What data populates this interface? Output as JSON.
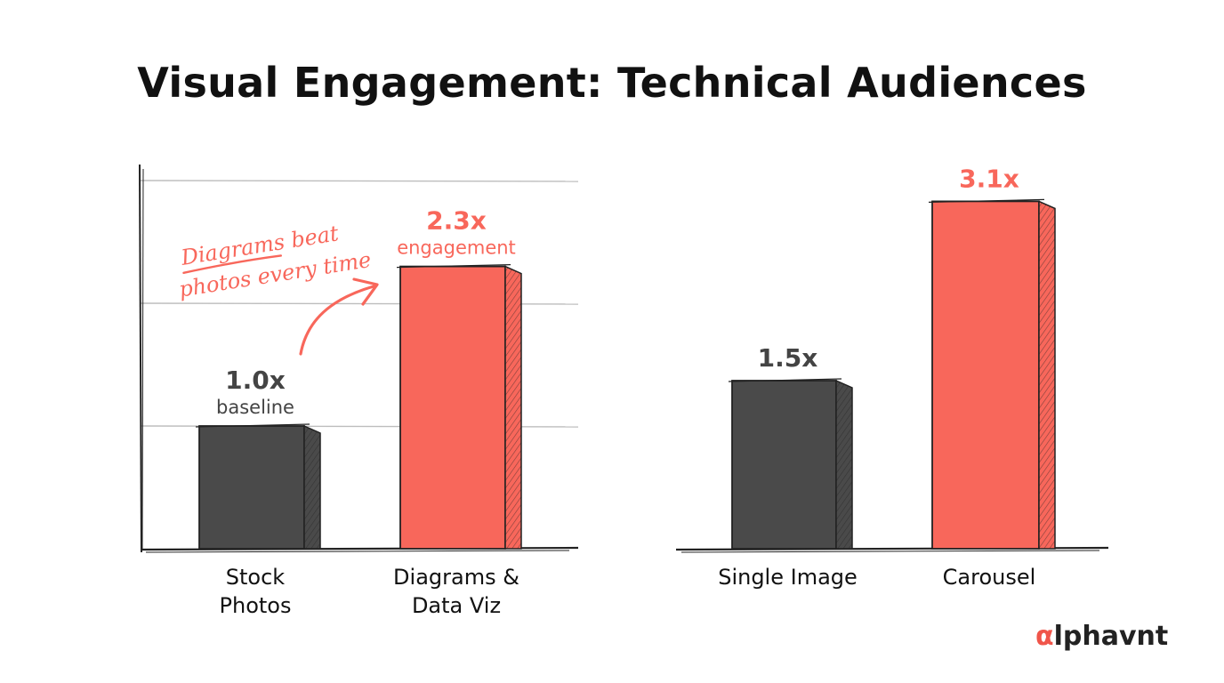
{
  "title": "Visual Engagement: Technical Audiences",
  "brand": {
    "accent": "α",
    "rest": "lphavnt"
  },
  "colors": {
    "dark": "#4a4a4a",
    "accent": "#f8675b",
    "ink": "#222222",
    "grid": "#bdbdbd"
  },
  "annotation": {
    "line1": "Diagrams beat",
    "line2": "photos every time"
  },
  "chart_data": [
    {
      "type": "bar",
      "categories": [
        [
          "Stock",
          "Photos"
        ],
        [
          "Diagrams &",
          "Data Viz"
        ]
      ],
      "values": [
        1.0,
        2.3
      ],
      "value_labels": [
        "1.0x",
        "2.3x"
      ],
      "sub_labels": [
        "baseline",
        "engagement"
      ],
      "bar_colors": [
        "dark",
        "accent"
      ],
      "grid": true,
      "ylim": [
        0,
        3.3
      ]
    },
    {
      "type": "bar",
      "categories": [
        [
          "Single Image"
        ],
        [
          "Carousel"
        ]
      ],
      "values": [
        1.5,
        3.1
      ],
      "value_labels": [
        "1.5x",
        "3.1x"
      ],
      "sub_labels": [
        "",
        ""
      ],
      "bar_colors": [
        "dark",
        "accent"
      ],
      "grid": false,
      "ylim": [
        0,
        3.3
      ]
    }
  ]
}
